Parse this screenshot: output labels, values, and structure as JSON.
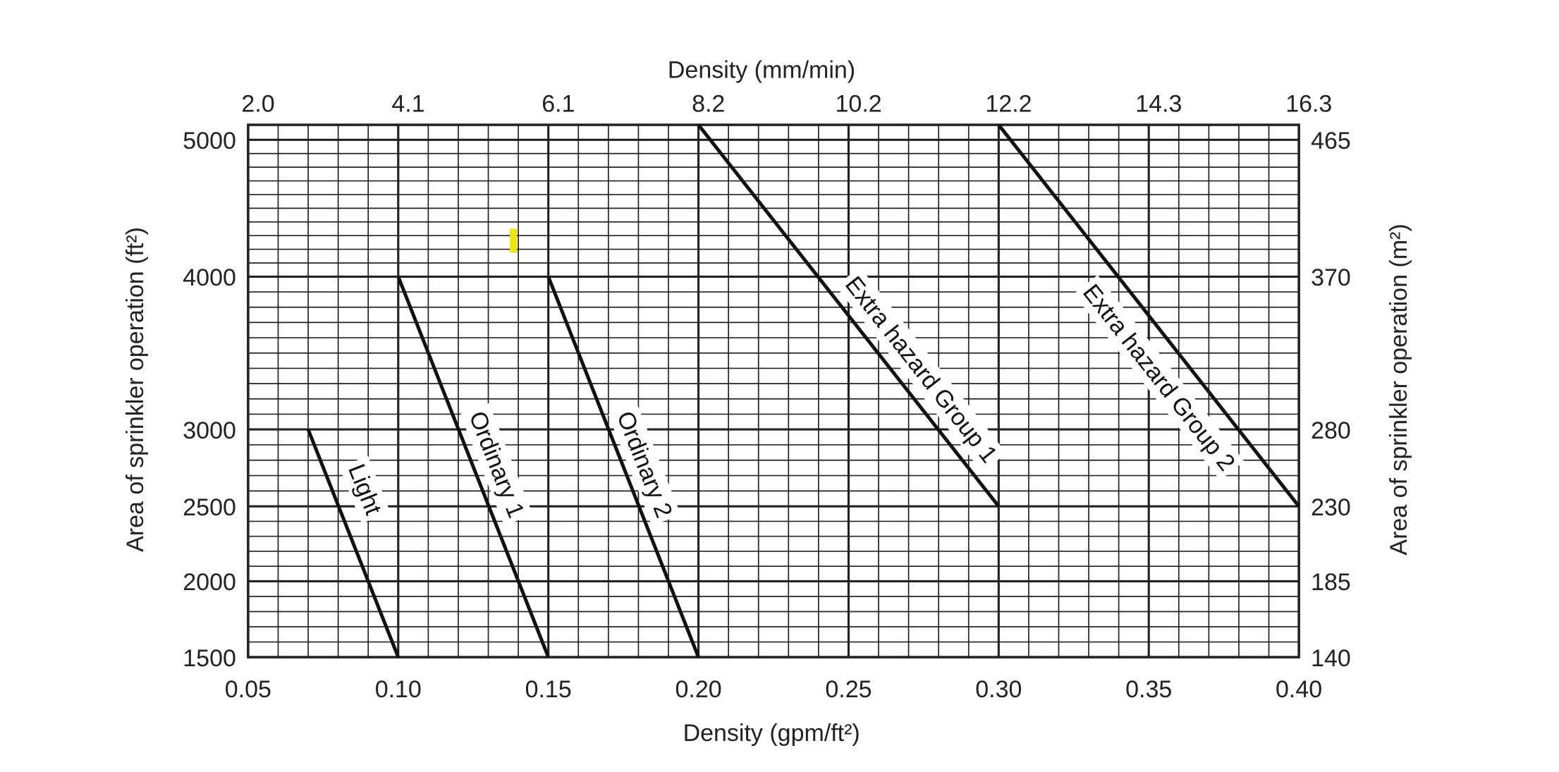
{
  "chart_data": {
    "type": "line",
    "xlabel": "Density (gpm/ft²)",
    "x2label": "Density (mm/min)",
    "ylabel": "Area of sprinkler operation (ft²)",
    "y2label": "Area of sprinkler operation (m²)",
    "xlim": [
      0.05,
      0.4
    ],
    "ylim": [
      1500,
      5100
    ],
    "grid": true,
    "x_ticks": [
      0.05,
      0.1,
      0.15,
      0.2,
      0.25,
      0.3,
      0.35,
      0.4
    ],
    "x_tick_labels": [
      "0.05",
      "0.10",
      "0.15",
      "0.20",
      "0.25",
      "0.30",
      "0.35",
      "0.40"
    ],
    "x2_tick_labels": [
      "2.0",
      "4.1",
      "6.1",
      "8.2",
      "10.2",
      "12.2",
      "14.3",
      "16.3"
    ],
    "y_ticks": [
      1500,
      2000,
      2500,
      3000,
      4000,
      5000
    ],
    "y_tick_labels": [
      "1500",
      "2000",
      "2500",
      "3000",
      "4000",
      "5000"
    ],
    "y2_tick_labels": [
      "140",
      "185",
      "230",
      "280",
      "370",
      "465"
    ],
    "series": [
      {
        "name": "Light",
        "x": [
          0.07,
          0.1
        ],
        "y": [
          3000,
          1500
        ]
      },
      {
        "name": "Ordinary 1",
        "x": [
          0.1,
          0.15
        ],
        "y": [
          4000,
          1500
        ]
      },
      {
        "name": "Ordinary 2",
        "x": [
          0.15,
          0.2
        ],
        "y": [
          4000,
          1500
        ]
      },
      {
        "name": "Extra hazard Group 1",
        "x": [
          0.2,
          0.3
        ],
        "y": [
          5100,
          2500
        ]
      },
      {
        "name": "Extra hazard Group 2",
        "x": [
          0.3,
          0.4
        ],
        "y": [
          5100,
          2500
        ]
      }
    ],
    "colors": {
      "lines": "#111111",
      "grid": "#222222",
      "highlight": "#f2e600"
    }
  }
}
